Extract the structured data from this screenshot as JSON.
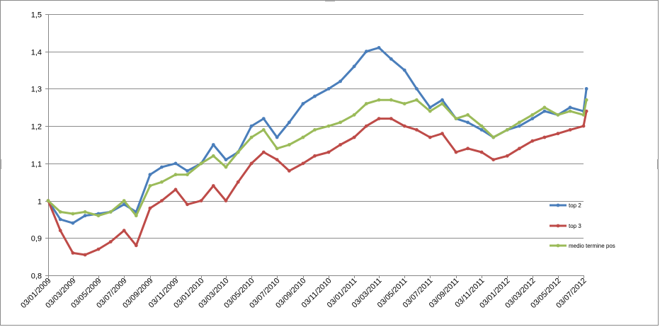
{
  "chart_data": {
    "type": "line",
    "title": "",
    "xlabel": "",
    "ylabel": "",
    "ylim": [
      0.8,
      1.5
    ],
    "y_ticks": [
      "1,5",
      "1,4",
      "1,3",
      "1,2",
      "1,1",
      "1",
      "0,9",
      "0,8"
    ],
    "x_ticks": [
      "03/01/2009",
      "03/03/2009",
      "03/05/2009",
      "03/07/2009",
      "03/09/2009",
      "03/11/2009",
      "03/01/2010",
      "03/03/2010",
      "03/05/2010",
      "03/07/2010",
      "03/09/2010",
      "03/11/2010",
      "03/01/2011",
      "03/03/2011",
      "03/05/2011",
      "03/07/2011",
      "03/09/2011",
      "03/11/2011",
      "03/01/2012",
      "03/03/2012",
      "03/05/2012",
      "03/07/2012"
    ],
    "grid": "horizontal",
    "legend_position": "right",
    "x": [
      "03/01/2009",
      "01/02/2009",
      "03/03/2009",
      "01/04/2009",
      "03/05/2009",
      "01/06/2009",
      "03/07/2009",
      "01/08/2009",
      "03/09/2009",
      "01/10/2009",
      "03/11/2009",
      "01/12/2009",
      "03/01/2010",
      "01/02/2010",
      "03/03/2010",
      "01/04/2010",
      "03/05/2010",
      "01/06/2010",
      "03/07/2010",
      "01/08/2010",
      "03/09/2010",
      "01/10/2010",
      "03/11/2010",
      "01/12/2010",
      "03/01/2011",
      "01/02/2011",
      "03/03/2011",
      "01/04/2011",
      "03/05/2011",
      "01/06/2011",
      "03/07/2011",
      "01/08/2011",
      "03/09/2011",
      "01/10/2011",
      "03/11/2011",
      "01/12/2011",
      "03/01/2012",
      "01/02/2012",
      "03/03/2012",
      "01/04/2012",
      "03/05/2012",
      "01/06/2012",
      "03/07/2012",
      "10/07/2012"
    ],
    "series": [
      {
        "name": "top 2",
        "color": "#4a7ebb",
        "values": [
          1.0,
          0.95,
          0.94,
          0.96,
          0.965,
          0.97,
          0.99,
          0.97,
          1.07,
          1.09,
          1.1,
          1.08,
          1.1,
          1.15,
          1.11,
          1.13,
          1.2,
          1.22,
          1.17,
          1.21,
          1.26,
          1.28,
          1.3,
          1.32,
          1.36,
          1.4,
          1.41,
          1.38,
          1.35,
          1.3,
          1.25,
          1.27,
          1.22,
          1.21,
          1.19,
          1.17,
          1.19,
          1.2,
          1.22,
          1.24,
          1.23,
          1.25,
          1.24,
          1.3
        ]
      },
      {
        "name": "top 3",
        "color": "#be4b48",
        "values": [
          1.0,
          0.92,
          0.86,
          0.855,
          0.87,
          0.89,
          0.92,
          0.88,
          0.98,
          1.0,
          1.03,
          0.99,
          1.0,
          1.04,
          1.0,
          1.05,
          1.1,
          1.13,
          1.11,
          1.08,
          1.1,
          1.12,
          1.13,
          1.15,
          1.17,
          1.2,
          1.22,
          1.22,
          1.2,
          1.19,
          1.17,
          1.18,
          1.13,
          1.14,
          1.13,
          1.11,
          1.12,
          1.14,
          1.16,
          1.17,
          1.18,
          1.19,
          1.2,
          1.24
        ]
      },
      {
        "name": "medio termine pos",
        "color": "#9bbb59",
        "values": [
          1.0,
          0.97,
          0.965,
          0.97,
          0.96,
          0.97,
          1.0,
          0.96,
          1.04,
          1.05,
          1.07,
          1.07,
          1.1,
          1.12,
          1.09,
          1.13,
          1.17,
          1.19,
          1.14,
          1.15,
          1.17,
          1.19,
          1.2,
          1.21,
          1.23,
          1.26,
          1.27,
          1.27,
          1.26,
          1.27,
          1.24,
          1.26,
          1.22,
          1.23,
          1.2,
          1.17,
          1.19,
          1.21,
          1.23,
          1.25,
          1.23,
          1.24,
          1.23,
          1.27
        ]
      }
    ]
  }
}
